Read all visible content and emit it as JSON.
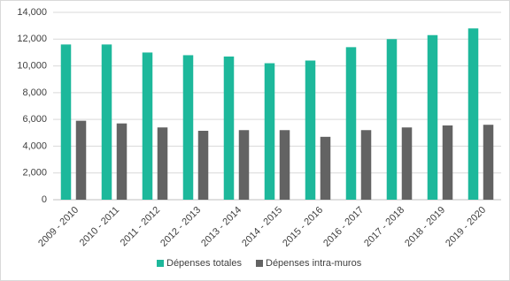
{
  "chart_data": {
    "type": "bar",
    "categories": [
      "2009 - 2010",
      "2010 - 2011",
      "2011 - 2012",
      "2012 - 2013",
      "2013 - 2014",
      "2014 - 2015",
      "2015 - 2016",
      "2016 - 2017",
      "2017 - 2018",
      "2018 - 2019",
      "2019 - 2020"
    ],
    "series": [
      {
        "name": "Dépenses totales",
        "color": "#1db89b",
        "values": [
          11600,
          11600,
          11000,
          10800,
          10700,
          10200,
          10400,
          11400,
          12000,
          12300,
          12800
        ]
      },
      {
        "name": "Dépenses intra-muros",
        "color": "#636363",
        "values": [
          5900,
          5700,
          5400,
          5150,
          5200,
          5200,
          4700,
          5200,
          5400,
          5550,
          5600
        ]
      }
    ],
    "ylim": [
      0,
      14000
    ],
    "yticks": [
      0,
      {
        "value": 2000,
        "label": "2,000"
      },
      {
        "value": 4000,
        "label": "4,000"
      },
      {
        "value": 6000,
        "label": "6,000"
      },
      {
        "value": 8000,
        "label": "8,000"
      },
      {
        "value": 10000,
        "label": "10,000"
      },
      {
        "value": 12000,
        "label": "12,000"
      },
      {
        "value": 14000,
        "label": "14,000"
      }
    ],
    "grid": true,
    "legend": "bottom"
  }
}
